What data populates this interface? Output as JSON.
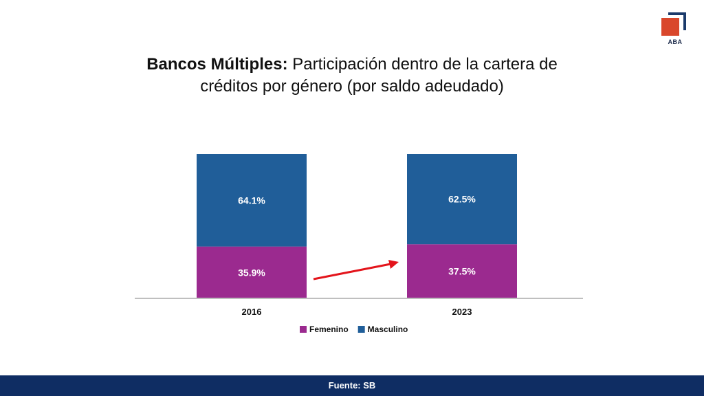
{
  "logo": {
    "text": "ABA",
    "colors": {
      "square": "#d9472b",
      "bracket": "#1b3a6b"
    }
  },
  "title": {
    "bold": "Bancos Múltiples:",
    "line1_rest": "Participación dentro de la cartera de",
    "line2": "créditos por género (por saldo adeudado)"
  },
  "footer": {
    "text": "Fuente: SB"
  },
  "colors": {
    "femenino": "#9b2a8f",
    "masculino": "#205e99",
    "arrow": "#e3141b",
    "axis": "#bfbfbf"
  },
  "chart_data": {
    "type": "bar",
    "stacked": true,
    "categories": [
      "2016",
      "2023"
    ],
    "series": [
      {
        "name": "Femenino",
        "values": [
          35.9,
          37.5
        ],
        "labels": [
          "35.9%",
          "37.5%"
        ],
        "color": "#9b2a8f"
      },
      {
        "name": "Masculino",
        "values": [
          64.1,
          62.5
        ],
        "labels": [
          "64.1%",
          "62.5%"
        ],
        "color": "#205e99"
      }
    ],
    "ylim": [
      0,
      100
    ],
    "legend_position": "bottom",
    "grid": false,
    "annotation": "red arrow from the 2016 Femenino bar toward the 2023 Femenino bar"
  }
}
